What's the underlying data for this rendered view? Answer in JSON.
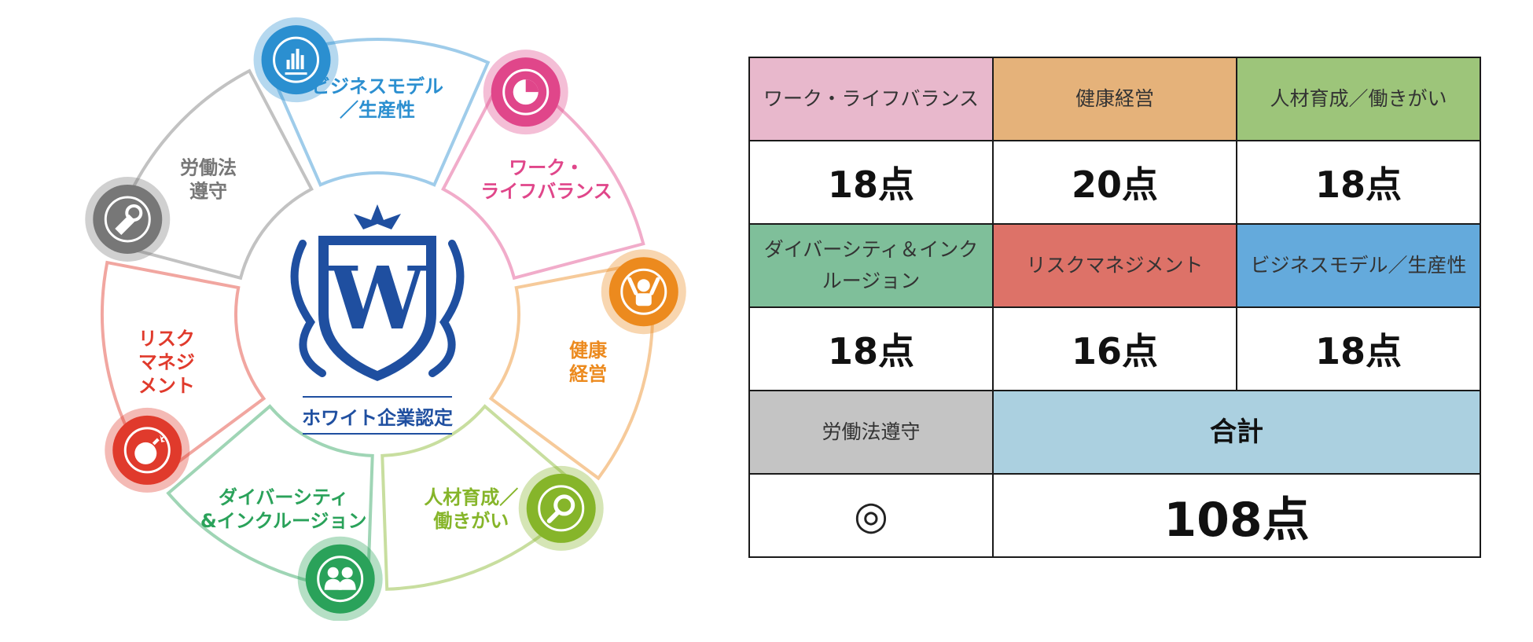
{
  "emblem": {
    "caption": "ホワイト企業認定",
    "letter": "W"
  },
  "segments": [
    {
      "id": "business",
      "label_lines": [
        "ビジネスモデル",
        "／生産性"
      ],
      "color": "#2b8fd0",
      "icon": "bar-chart-icon"
    },
    {
      "id": "worklife",
      "label_lines": [
        "ワーク・",
        "ライフバランス"
      ],
      "color": "#e0468a",
      "icon": "pie-chart-icon"
    },
    {
      "id": "health",
      "label_lines": [
        "健康",
        "経営"
      ],
      "color": "#ec8a1e",
      "icon": "person-cheer-icon"
    },
    {
      "id": "talent",
      "label_lines": [
        "人材育成／",
        "働きがい"
      ],
      "color": "#86b52a",
      "icon": "magnifier-icon"
    },
    {
      "id": "diversity",
      "label_lines": [
        "ダイバーシティ",
        "&インクルージョン"
      ],
      "color": "#2aa25a",
      "icon": "people-icon"
    },
    {
      "id": "risk",
      "label_lines": [
        "リスク",
        "マネジ",
        "メント"
      ],
      "color": "#e03a2c",
      "icon": "bomb-icon"
    },
    {
      "id": "labor",
      "label_lines": [
        "労働法",
        "遵守"
      ],
      "color": "#777777",
      "icon": "whistle-icon"
    }
  ],
  "table": {
    "row1": [
      {
        "label": "ワーク・ライフバランス",
        "bg": "#e8b8cc"
      },
      {
        "label": "健康経営",
        "bg": "#e5b27a"
      },
      {
        "label": "人材育成／働きがい",
        "bg": "#9dc57a"
      }
    ],
    "row1_scores": [
      "18点",
      "20点",
      "18点"
    ],
    "row2": [
      {
        "label": "ダイバーシティ＆インクルージョン",
        "bg": "#7fbf9a"
      },
      {
        "label": "リスクマネジメント",
        "bg": "#dd7268"
      },
      {
        "label": "ビジネスモデル／生産性",
        "bg": "#64aadc"
      }
    ],
    "row2_scores": [
      "18点",
      "16点",
      "18点"
    ],
    "row3": {
      "label": "労働法遵守",
      "label_bg": "#c4c4c4",
      "total_label": "合計",
      "total_bg": "#abd0e0",
      "mark": "◎",
      "total": "108点"
    }
  }
}
